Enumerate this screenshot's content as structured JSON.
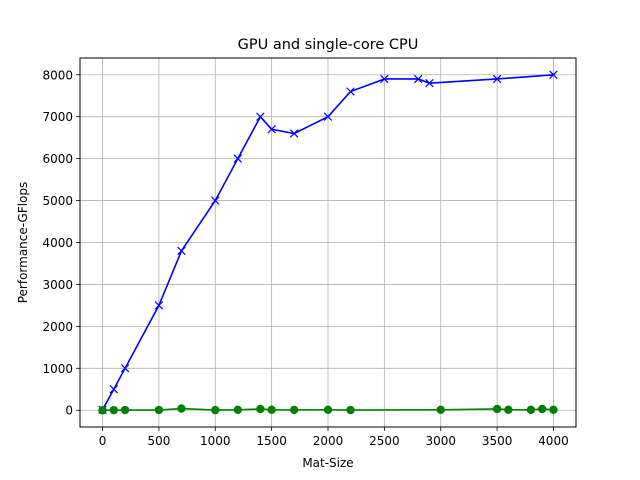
{
  "chart_data": {
    "type": "line",
    "title": "GPU and single-core CPU",
    "xlabel": "Mat-Size",
    "ylabel": "Performance-GFlops",
    "xlim": [
      -200,
      4200
    ],
    "ylim": [
      -400,
      8400
    ],
    "xticks": [
      0,
      500,
      1000,
      1500,
      2000,
      2500,
      3000,
      3500,
      4000
    ],
    "yticks": [
      0,
      1000,
      2000,
      3000,
      4000,
      5000,
      6000,
      7000,
      8000
    ],
    "grid": true,
    "series": [
      {
        "marker": "x",
        "color": "#0000ff",
        "x": [
          0,
          100,
          200,
          500,
          700,
          1000,
          1200,
          1400,
          1500,
          1700,
          2000,
          2200,
          2500,
          2800,
          2900,
          3500,
          4000
        ],
        "y": [
          10,
          500,
          1000,
          2500,
          3800,
          5000,
          6000,
          7000,
          6700,
          6600,
          7000,
          7600,
          7900,
          7900,
          7800,
          7900,
          8000
        ]
      },
      {
        "marker": "o",
        "color": "#008000",
        "x": [
          0,
          100,
          200,
          500,
          700,
          1000,
          1200,
          1400,
          1500,
          1700,
          2000,
          2200,
          3000,
          3500,
          3600,
          3800,
          3900,
          4000
        ],
        "y": [
          0,
          2,
          5,
          5,
          40,
          3,
          10,
          30,
          10,
          8,
          10,
          5,
          10,
          30,
          12,
          10,
          30,
          10
        ]
      }
    ]
  }
}
